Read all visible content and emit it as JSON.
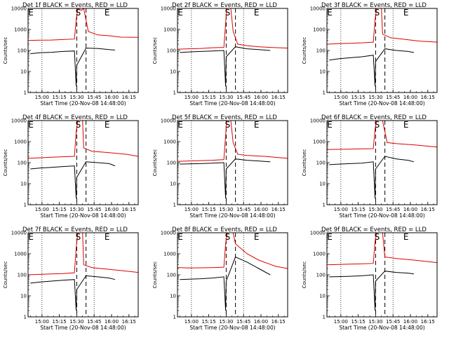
{
  "figure": {
    "start_time_label": "Start Time (20-Nov-08 14:48:00)",
    "ylabel": "Counts/sec",
    "x_ticks": [
      "15:00",
      "15:15",
      "15:30",
      "15:45",
      "16:00",
      "16:15"
    ],
    "y_ticks": [
      "1",
      "10",
      "100",
      "1000",
      "10000"
    ],
    "marker_labels": [
      "E",
      "S",
      "E"
    ],
    "colors": {
      "events": "#000000",
      "lld": "#e00000",
      "frame": "#000000"
    }
  },
  "chart_data": [
    {
      "type": "line",
      "title": "Det 1f BLACK = Events, RED = LLD",
      "x_units": "minutes from 14:48:00",
      "xlim": [
        0,
        95
      ],
      "ylim": [
        1,
        10000
      ],
      "yscale": "log",
      "dotted_x": [
        12,
        57
      ],
      "dashed_x": [
        42,
        50
      ],
      "series": [
        {
          "name": "Events",
          "points": [
            [
              2,
              70
            ],
            [
              10,
              78
            ],
            [
              20,
              82
            ],
            [
              30,
              90
            ],
            [
              40,
              95
            ],
            [
              41.5,
              2
            ],
            [
              42,
              20
            ],
            [
              50,
              130
            ],
            [
              60,
              125
            ],
            [
              70,
              110
            ],
            [
              75,
              105
            ]
          ]
        },
        {
          "name": "LLD",
          "points": [
            [
              0,
              300
            ],
            [
              10,
              310
            ],
            [
              20,
              315
            ],
            [
              30,
              330
            ],
            [
              40,
              350
            ],
            [
              41.5,
              3000
            ],
            [
              43,
              10000
            ],
            [
              46,
              8000
            ],
            [
              48,
              10000
            ],
            [
              52,
              800
            ],
            [
              60,
              550
            ],
            [
              70,
              500
            ],
            [
              80,
              430
            ],
            [
              95,
              420
            ]
          ]
        }
      ]
    },
    {
      "type": "line",
      "title": "Det 2f BLACK = Events, RED = LLD",
      "x_units": "minutes from 14:48:00",
      "xlim": [
        0,
        95
      ],
      "ylim": [
        1,
        10000
      ],
      "yscale": "log",
      "dotted_x": [
        12,
        57
      ],
      "dashed_x": [
        42,
        50
      ],
      "series": [
        {
          "name": "Events",
          "points": [
            [
              2,
              80
            ],
            [
              10,
              85
            ],
            [
              20,
              90
            ],
            [
              30,
              95
            ],
            [
              40,
              100
            ],
            [
              41.5,
              2
            ],
            [
              42,
              50
            ],
            [
              50,
              150
            ],
            [
              60,
              120
            ],
            [
              70,
              110
            ],
            [
              80,
              100
            ]
          ]
        },
        {
          "name": "LLD",
          "points": [
            [
              0,
              115
            ],
            [
              10,
              120
            ],
            [
              20,
              125
            ],
            [
              30,
              135
            ],
            [
              40,
              140
            ],
            [
              41.5,
              2000
            ],
            [
              42.5,
              10000
            ],
            [
              46,
              10000
            ],
            [
              48,
              800
            ],
            [
              52,
              200
            ],
            [
              60,
              170
            ],
            [
              70,
              150
            ],
            [
              80,
              140
            ],
            [
              95,
              130
            ]
          ]
        }
      ]
    },
    {
      "type": "line",
      "title": "Det 3f BLACK = Events, RED = LLD",
      "x_units": "minutes from 14:48:00",
      "xlim": [
        0,
        95
      ],
      "ylim": [
        1,
        10000
      ],
      "yscale": "log",
      "dotted_x": [
        12,
        57
      ],
      "dashed_x": [
        42,
        50
      ],
      "series": [
        {
          "name": "Events",
          "points": [
            [
              2,
              35
            ],
            [
              10,
              40
            ],
            [
              20,
              45
            ],
            [
              30,
              50
            ],
            [
              40,
              60
            ],
            [
              41.5,
              2
            ],
            [
              42,
              30
            ],
            [
              50,
              120
            ],
            [
              60,
              100
            ],
            [
              70,
              90
            ],
            [
              75,
              80
            ]
          ]
        },
        {
          "name": "LLD",
          "points": [
            [
              0,
              200
            ],
            [
              10,
              210
            ],
            [
              20,
              220
            ],
            [
              30,
              230
            ],
            [
              40,
              250
            ],
            [
              41.5,
              3000
            ],
            [
              43,
              10000
            ],
            [
              47,
              10000
            ],
            [
              48,
              600
            ],
            [
              55,
              400
            ],
            [
              65,
              350
            ],
            [
              80,
              280
            ],
            [
              95,
              250
            ]
          ]
        }
      ]
    },
    {
      "type": "line",
      "title": "Det 4f BLACK = Events, RED = LLD",
      "x_units": "minutes from 14:48:00",
      "xlim": [
        0,
        95
      ],
      "ylim": [
        1,
        10000
      ],
      "yscale": "log",
      "dotted_x": [
        12,
        57
      ],
      "dashed_x": [
        42,
        50
      ],
      "series": [
        {
          "name": "Events",
          "points": [
            [
              2,
              50
            ],
            [
              10,
              55
            ],
            [
              20,
              60
            ],
            [
              30,
              65
            ],
            [
              40,
              70
            ],
            [
              41.5,
              2
            ],
            [
              42,
              20
            ],
            [
              50,
              110
            ],
            [
              60,
              100
            ],
            [
              70,
              90
            ],
            [
              75,
              70
            ]
          ]
        },
        {
          "name": "LLD",
          "points": [
            [
              0,
              160
            ],
            [
              10,
              170
            ],
            [
              20,
              180
            ],
            [
              30,
              190
            ],
            [
              40,
              200
            ],
            [
              41.5,
              3000
            ],
            [
              43,
              10000
            ],
            [
              47,
              10000
            ],
            [
              48,
              500
            ],
            [
              55,
              350
            ],
            [
              70,
              300
            ],
            [
              85,
              250
            ],
            [
              95,
              200
            ]
          ]
        }
      ]
    },
    {
      "type": "line",
      "title": "Det 5f BLACK = Events, RED = LLD",
      "x_units": "minutes from 14:48:00",
      "xlim": [
        0,
        95
      ],
      "ylim": [
        1,
        10000
      ],
      "yscale": "log",
      "dotted_x": [
        12,
        57
      ],
      "dashed_x": [
        42,
        50
      ],
      "series": [
        {
          "name": "Events",
          "points": [
            [
              2,
              85
            ],
            [
              10,
              88
            ],
            [
              20,
              90
            ],
            [
              30,
              95
            ],
            [
              40,
              100
            ],
            [
              41.5,
              2
            ],
            [
              42,
              50
            ],
            [
              50,
              150
            ],
            [
              60,
              130
            ],
            [
              70,
              120
            ],
            [
              80,
              110
            ]
          ]
        },
        {
          "name": "LLD",
          "points": [
            [
              0,
              115
            ],
            [
              10,
              120
            ],
            [
              20,
              125
            ],
            [
              30,
              130
            ],
            [
              40,
              140
            ],
            [
              41.5,
              2000
            ],
            [
              42.5,
              10000
            ],
            [
              46,
              10000
            ],
            [
              48,
              900
            ],
            [
              52,
              250
            ],
            [
              60,
              220
            ],
            [
              75,
              200
            ],
            [
              95,
              160
            ]
          ]
        }
      ]
    },
    {
      "type": "line",
      "title": "Det 6f BLACK = Events, RED = LLD",
      "x_units": "minutes from 14:48:00",
      "xlim": [
        0,
        95
      ],
      "ylim": [
        1,
        10000
      ],
      "yscale": "log",
      "dotted_x": [
        12,
        57
      ],
      "dashed_x": [
        42,
        50
      ],
      "series": [
        {
          "name": "Events",
          "points": [
            [
              2,
              80
            ],
            [
              10,
              85
            ],
            [
              20,
              90
            ],
            [
              30,
              95
            ],
            [
              40,
              110
            ],
            [
              41.5,
              2
            ],
            [
              42,
              50
            ],
            [
              50,
              200
            ],
            [
              60,
              150
            ],
            [
              70,
              130
            ],
            [
              75,
              110
            ]
          ]
        },
        {
          "name": "LLD",
          "points": [
            [
              0,
              420
            ],
            [
              10,
              430
            ],
            [
              20,
              440
            ],
            [
              30,
              450
            ],
            [
              40,
              460
            ],
            [
              41.5,
              4000
            ],
            [
              43,
              10000
            ],
            [
              48,
              10000
            ],
            [
              52,
              900
            ],
            [
              60,
              800
            ],
            [
              75,
              700
            ],
            [
              95,
              550
            ]
          ]
        }
      ]
    },
    {
      "type": "line",
      "title": "Det 7f BLACK = Events, RED = LLD",
      "x_units": "minutes from 14:48:00",
      "xlim": [
        0,
        95
      ],
      "ylim": [
        1,
        10000
      ],
      "yscale": "log",
      "dotted_x": [
        12,
        57
      ],
      "dashed_x": [
        42,
        50
      ],
      "series": [
        {
          "name": "Events",
          "points": [
            [
              2,
              40
            ],
            [
              10,
              45
            ],
            [
              20,
              50
            ],
            [
              30,
              55
            ],
            [
              40,
              60
            ],
            [
              41.5,
              2
            ],
            [
              42,
              20
            ],
            [
              50,
              90
            ],
            [
              60,
              80
            ],
            [
              70,
              70
            ],
            [
              75,
              60
            ]
          ]
        },
        {
          "name": "LLD",
          "points": [
            [
              0,
              100
            ],
            [
              10,
              105
            ],
            [
              20,
              110
            ],
            [
              30,
              115
            ],
            [
              40,
              125
            ],
            [
              41.5,
              2000
            ],
            [
              43,
              10000
            ],
            [
              47,
              10000
            ],
            [
              48,
              300
            ],
            [
              55,
              220
            ],
            [
              70,
              180
            ],
            [
              85,
              150
            ],
            [
              95,
              130
            ]
          ]
        }
      ]
    },
    {
      "type": "line",
      "title": "Det 8f BLACK = Events, RED = LLD",
      "x_units": "minutes from 14:48:00",
      "xlim": [
        0,
        95
      ],
      "ylim": [
        1,
        10000
      ],
      "yscale": "log",
      "dotted_x": [
        12,
        57
      ],
      "dashed_x": [
        42,
        50
      ],
      "series": [
        {
          "name": "Events",
          "points": [
            [
              2,
              60
            ],
            [
              10,
              62
            ],
            [
              20,
              65
            ],
            [
              30,
              70
            ],
            [
              40,
              80
            ],
            [
              41.5,
              2
            ],
            [
              42,
              50
            ],
            [
              50,
              700
            ],
            [
              60,
              400
            ],
            [
              70,
              200
            ],
            [
              80,
              100
            ]
          ]
        },
        {
          "name": "LLD",
          "points": [
            [
              0,
              220
            ],
            [
              10,
              210
            ],
            [
              20,
              215
            ],
            [
              30,
              220
            ],
            [
              40,
              230
            ],
            [
              41.5,
              3000
            ],
            [
              43,
              10000
            ],
            [
              48,
              10000
            ],
            [
              50,
              3000
            ],
            [
              60,
              1000
            ],
            [
              70,
              500
            ],
            [
              85,
              250
            ],
            [
              95,
              200
            ]
          ]
        }
      ]
    },
    {
      "type": "line",
      "title": "Det 9f BLACK = Events, RED = LLD",
      "x_units": "minutes from 14:48:00",
      "xlim": [
        0,
        95
      ],
      "ylim": [
        1,
        10000
      ],
      "yscale": "log",
      "dotted_x": [
        12,
        57
      ],
      "dashed_x": [
        42,
        50
      ],
      "series": [
        {
          "name": "Events",
          "points": [
            [
              2,
              80
            ],
            [
              10,
              82
            ],
            [
              20,
              85
            ],
            [
              30,
              90
            ],
            [
              40,
              100
            ],
            [
              41.5,
              2
            ],
            [
              42,
              50
            ],
            [
              50,
              150
            ],
            [
              60,
              130
            ],
            [
              70,
              120
            ],
            [
              75,
              110
            ]
          ]
        },
        {
          "name": "LLD",
          "points": [
            [
              0,
              300
            ],
            [
              10,
              310
            ],
            [
              20,
              320
            ],
            [
              30,
              330
            ],
            [
              40,
              350
            ],
            [
              41.5,
              4000
            ],
            [
              43,
              10000
            ],
            [
              48,
              10000
            ],
            [
              50,
              700
            ],
            [
              60,
              600
            ],
            [
              75,
              500
            ],
            [
              95,
              380
            ]
          ]
        }
      ]
    }
  ]
}
